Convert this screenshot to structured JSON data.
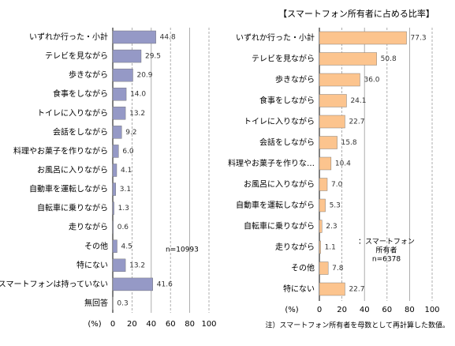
{
  "chart_data": [
    {
      "type": "hbar",
      "axis_label": "(%)",
      "annotation": [
        "n=10993"
      ],
      "color": "#9599c6",
      "categories": [
        "いずれか行った・小計",
        "テレビを見ながら",
        "歩きながら",
        "食事をしながら",
        "トイレに入りながら",
        "会話をしながら",
        "料理やお菓子を作りながら",
        "お風呂に入りながら",
        "自動車を運転しながら",
        "自転車に乗りながら",
        "走りながら",
        "その他",
        "特にない",
        "スマートフォンは持っていない",
        "無回答"
      ],
      "values": [
        44.8,
        29.5,
        20.9,
        14.0,
        13.2,
        9.2,
        6.0,
        4.1,
        3.1,
        1.3,
        0.6,
        4.5,
        13.2,
        41.6,
        0.3
      ],
      "value_labels": [
        "44.8",
        "29.5",
        "20.9",
        "14.0",
        "13.2",
        "9.2",
        "6.0",
        "4.1",
        "3.1",
        "1.3",
        "0.6",
        "4.5",
        "13.2",
        "41.6",
        "0.3"
      ],
      "xlim": [
        0,
        100
      ],
      "xticks": [
        0,
        20,
        40,
        60,
        80,
        100
      ],
      "grid": true
    },
    {
      "type": "hbar",
      "title": "【スマートフォン所有者に占める比率】",
      "axis_label": "(%)",
      "annotation": [
        "：スマートフォン",
        "所有者",
        "n=6378"
      ],
      "color": "#fcc48e",
      "categories": [
        "いずれか行った・小計",
        "テレビを見ながら",
        "歩きながら",
        "食事をしながら",
        "トイレに入りながら",
        "会話をしながら",
        "料理やお菓子を作りな…",
        "お風呂に入りながら",
        "自動車を運転しながら",
        "自転車に乗りながら",
        "走りながら",
        "その他",
        "特にない"
      ],
      "values": [
        77.3,
        50.8,
        36.0,
        24.1,
        22.7,
        15.8,
        10.4,
        7.0,
        5.3,
        2.3,
        1.1,
        7.8,
        22.7
      ],
      "value_labels": [
        "77.3",
        "50.8",
        "36.0",
        "24.1",
        "22.7",
        "15.8",
        "10.4",
        "7.0",
        "5.3",
        "2.3",
        "1.1",
        "7.8",
        "22.7"
      ],
      "xlim": [
        0,
        100
      ],
      "xticks": [
        0,
        20,
        40,
        60,
        80,
        100
      ],
      "grid": true,
      "footnote": "注）スマートフォン所有者を母数として再計算した数値。"
    }
  ]
}
